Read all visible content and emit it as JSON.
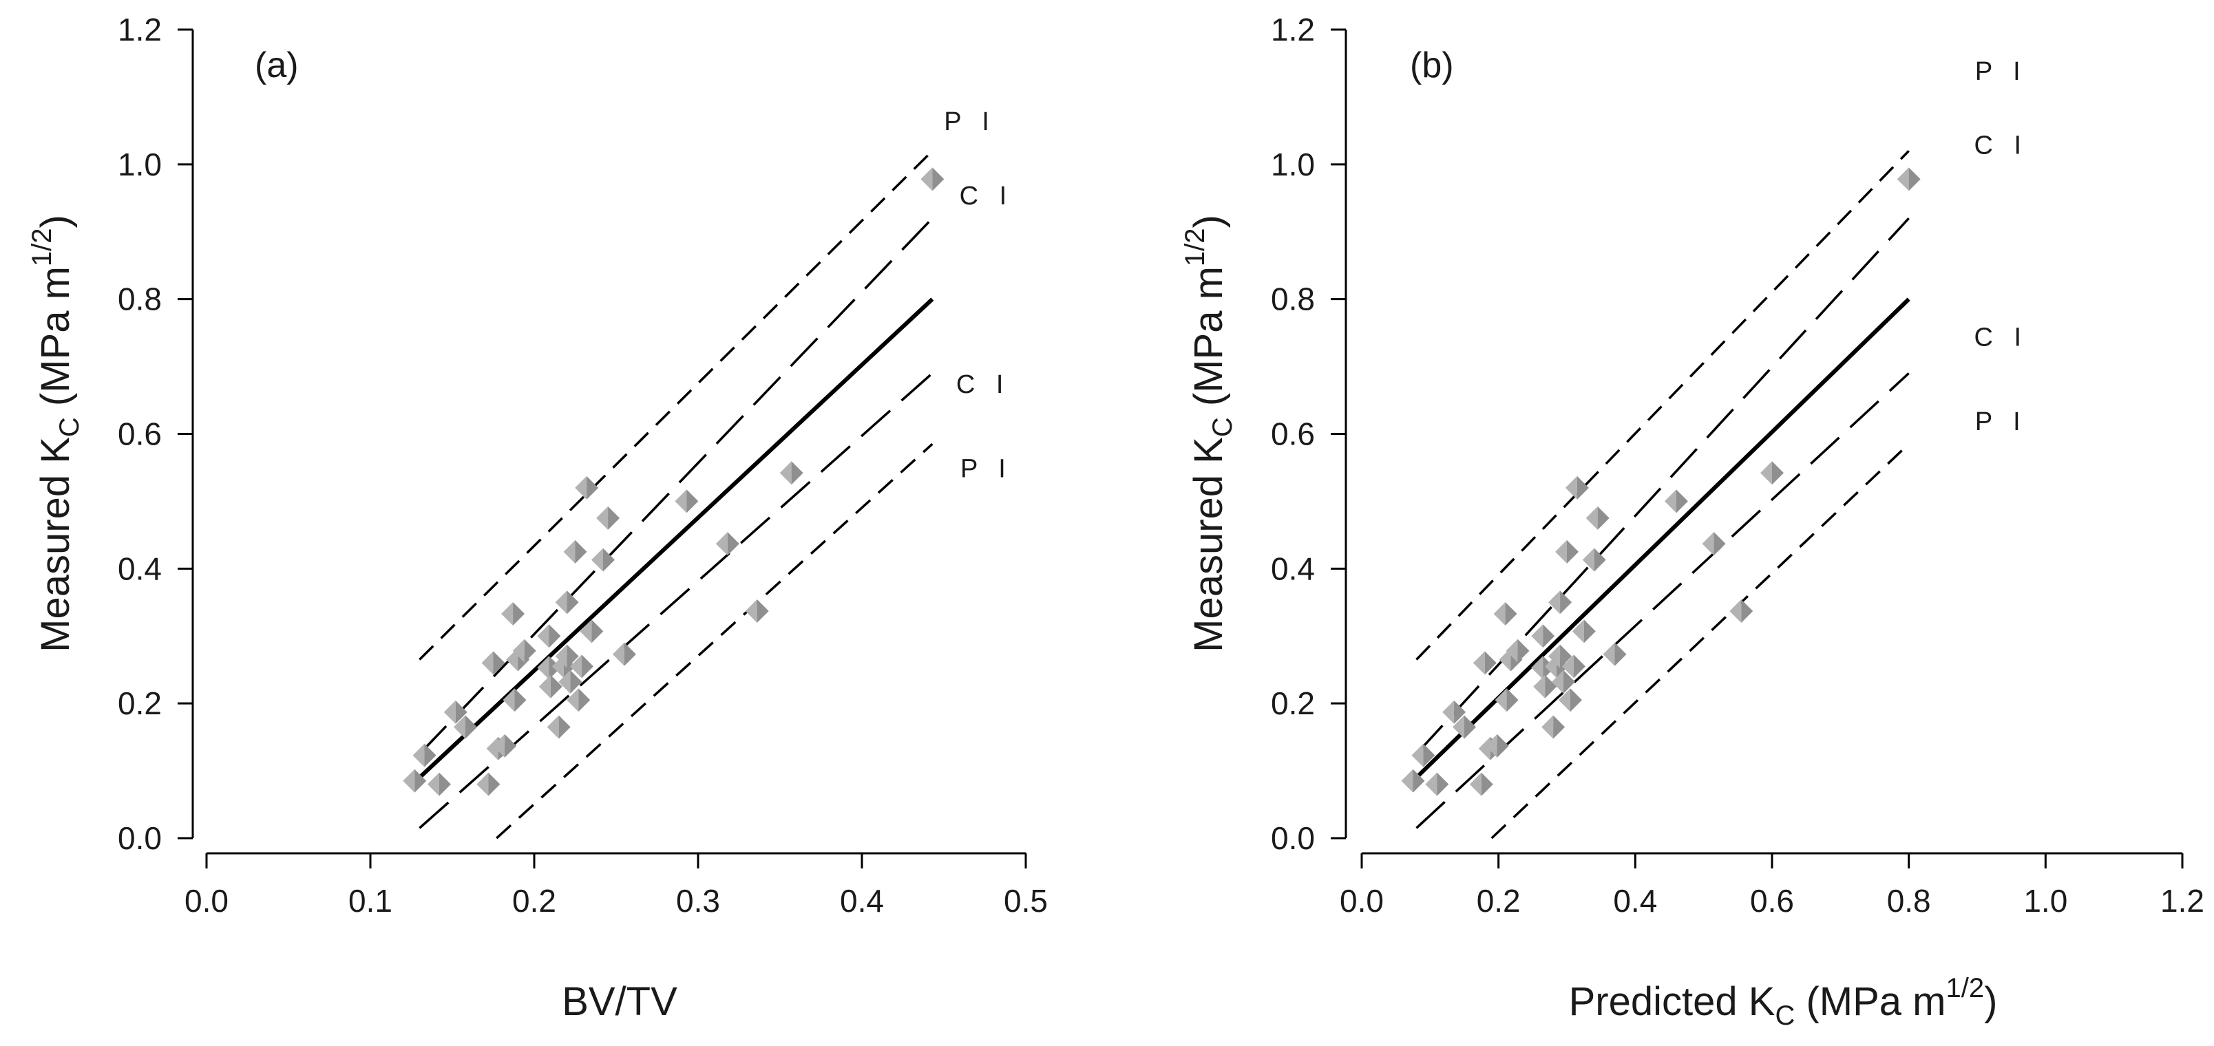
{
  "chart_data": [
    {
      "type": "scatter",
      "panel_label": "(a)",
      "xlabel": "BV/TV",
      "ylabel": {
        "main": "Measured K",
        "sub": "C",
        "unit_open": " (MPa m",
        "sup": "1/2",
        "unit_close": ")"
      },
      "xlim": [
        0.0,
        0.5
      ],
      "ylim": [
        0.0,
        1.2
      ],
      "xticks": [
        "0.0",
        "0.1",
        "0.2",
        "0.3",
        "0.4",
        "0.5"
      ],
      "yticks": [
        "0.0",
        "0.2",
        "0.4",
        "0.6",
        "0.8",
        "1.0",
        "1.2"
      ],
      "points": [
        {
          "x": 0.127,
          "y": 0.085
        },
        {
          "x": 0.133,
          "y": 0.123
        },
        {
          "x": 0.142,
          "y": 0.08
        },
        {
          "x": 0.152,
          "y": 0.187
        },
        {
          "x": 0.158,
          "y": 0.165
        },
        {
          "x": 0.172,
          "y": 0.08
        },
        {
          "x": 0.175,
          "y": 0.26
        },
        {
          "x": 0.178,
          "y": 0.133
        },
        {
          "x": 0.182,
          "y": 0.137
        },
        {
          "x": 0.187,
          "y": 0.333
        },
        {
          "x": 0.188,
          "y": 0.205
        },
        {
          "x": 0.19,
          "y": 0.265
        },
        {
          "x": 0.194,
          "y": 0.278
        },
        {
          "x": 0.209,
          "y": 0.3
        },
        {
          "x": 0.209,
          "y": 0.253
        },
        {
          "x": 0.21,
          "y": 0.225
        },
        {
          "x": 0.215,
          "y": 0.165
        },
        {
          "x": 0.218,
          "y": 0.255
        },
        {
          "x": 0.22,
          "y": 0.35
        },
        {
          "x": 0.22,
          "y": 0.27
        },
        {
          "x": 0.222,
          "y": 0.232
        },
        {
          "x": 0.225,
          "y": 0.425
        },
        {
          "x": 0.227,
          "y": 0.205
        },
        {
          "x": 0.229,
          "y": 0.255
        },
        {
          "x": 0.232,
          "y": 0.52
        },
        {
          "x": 0.235,
          "y": 0.307
        },
        {
          "x": 0.242,
          "y": 0.413
        },
        {
          "x": 0.245,
          "y": 0.475
        },
        {
          "x": 0.255,
          "y": 0.273
        },
        {
          "x": 0.293,
          "y": 0.5
        },
        {
          "x": 0.318,
          "y": 0.437
        },
        {
          "x": 0.336,
          "y": 0.337
        },
        {
          "x": 0.357,
          "y": 0.542
        },
        {
          "x": 0.443,
          "y": 0.978
        }
      ],
      "lines": {
        "fit": [
          [
            0.13,
            0.09
          ],
          [
            0.443,
            0.8
          ]
        ],
        "ci_upper": [
          [
            0.13,
            0.125
          ],
          [
            0.443,
            0.92
          ]
        ],
        "ci_lower": [
          [
            0.13,
            0.015
          ],
          [
            0.443,
            0.69
          ]
        ],
        "pi_upper": [
          [
            0.13,
            0.265
          ],
          [
            0.443,
            1.02
          ]
        ],
        "pi_lower": [
          [
            0.177,
            0.0
          ],
          [
            0.443,
            0.585
          ]
        ]
      },
      "band_labels": [
        {
          "text": "P I",
          "x": 0.466,
          "y": 1.065
        },
        {
          "text": "C I",
          "x": 0.476,
          "y": 0.955
        },
        {
          "text": "C I",
          "x": 0.474,
          "y": 0.675
        },
        {
          "text": "P I",
          "x": 0.476,
          "y": 0.55
        }
      ]
    },
    {
      "type": "scatter",
      "panel_label": "(b)",
      "xlabel": {
        "main": "Predicted K",
        "sub": "C",
        "unit_open": " (MPa m",
        "sup": "1/2",
        "unit_close": ")"
      },
      "ylabel": {
        "main": "Measured K",
        "sub": "C",
        "unit_open": " (MPa m",
        "sup": "1/2",
        "unit_close": ")"
      },
      "xlim": [
        0.0,
        1.2
      ],
      "ylim": [
        0.0,
        1.2
      ],
      "xticks": [
        "0.0",
        "0.2",
        "0.4",
        "0.6",
        "0.8",
        "1.0",
        "1.2"
      ],
      "yticks": [
        "0.0",
        "0.2",
        "0.4",
        "0.6",
        "0.8",
        "1.0",
        "1.2"
      ],
      "points": [
        {
          "x": 0.075,
          "y": 0.085
        },
        {
          "x": 0.09,
          "y": 0.123
        },
        {
          "x": 0.11,
          "y": 0.08
        },
        {
          "x": 0.135,
          "y": 0.187
        },
        {
          "x": 0.15,
          "y": 0.165
        },
        {
          "x": 0.175,
          "y": 0.08
        },
        {
          "x": 0.18,
          "y": 0.26
        },
        {
          "x": 0.188,
          "y": 0.133
        },
        {
          "x": 0.198,
          "y": 0.137
        },
        {
          "x": 0.21,
          "y": 0.333
        },
        {
          "x": 0.212,
          "y": 0.205
        },
        {
          "x": 0.218,
          "y": 0.265
        },
        {
          "x": 0.228,
          "y": 0.278
        },
        {
          "x": 0.265,
          "y": 0.3
        },
        {
          "x": 0.265,
          "y": 0.253
        },
        {
          "x": 0.268,
          "y": 0.225
        },
        {
          "x": 0.28,
          "y": 0.165
        },
        {
          "x": 0.285,
          "y": 0.255
        },
        {
          "x": 0.29,
          "y": 0.35
        },
        {
          "x": 0.29,
          "y": 0.27
        },
        {
          "x": 0.295,
          "y": 0.232
        },
        {
          "x": 0.3,
          "y": 0.425
        },
        {
          "x": 0.305,
          "y": 0.205
        },
        {
          "x": 0.31,
          "y": 0.255
        },
        {
          "x": 0.315,
          "y": 0.52
        },
        {
          "x": 0.325,
          "y": 0.307
        },
        {
          "x": 0.34,
          "y": 0.413
        },
        {
          "x": 0.345,
          "y": 0.475
        },
        {
          "x": 0.37,
          "y": 0.273
        },
        {
          "x": 0.46,
          "y": 0.5
        },
        {
          "x": 0.515,
          "y": 0.437
        },
        {
          "x": 0.555,
          "y": 0.337
        },
        {
          "x": 0.6,
          "y": 0.542
        },
        {
          "x": 0.8,
          "y": 0.978
        }
      ],
      "lines": {
        "fit": [
          [
            0.08,
            0.09
          ],
          [
            0.8,
            0.8
          ]
        ],
        "ci_upper": [
          [
            0.08,
            0.125
          ],
          [
            0.8,
            0.92
          ]
        ],
        "ci_lower": [
          [
            0.08,
            0.015
          ],
          [
            0.8,
            0.69
          ]
        ],
        "pi_upper": [
          [
            0.08,
            0.265
          ],
          [
            0.8,
            1.02
          ]
        ],
        "pi_lower": [
          [
            0.19,
            0.0
          ],
          [
            0.8,
            0.585
          ]
        ]
      },
      "band_labels": [
        {
          "text": "P I",
          "x": 0.935,
          "y": 1.14
        },
        {
          "text": "C I",
          "x": 0.935,
          "y": 1.03
        },
        {
          "text": "C I",
          "x": 0.935,
          "y": 0.745
        },
        {
          "text": "P I",
          "x": 0.935,
          "y": 0.62
        }
      ]
    }
  ],
  "style": {
    "marker_light": "#b3b3b3",
    "marker_dark": "#8f8f8f",
    "line_color": "#000000"
  }
}
